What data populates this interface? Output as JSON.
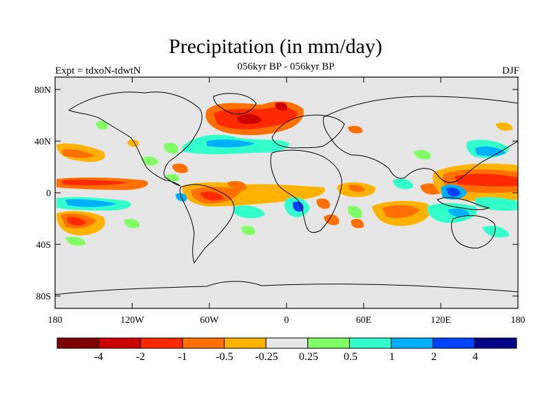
{
  "title": "Precipitation (in mm/day)",
  "subtitle": "056kyr BP - 056kyr BP",
  "left_subtitle": "Expt = tdxoN-tdwtN",
  "right_subtitle": "DJF",
  "colors": {
    "ocean": "#e6e6e6",
    "land_outline": "#000000",
    "bins": [
      "#7f0000",
      "#cc0000",
      "#ff2a00",
      "#ff7000",
      "#ffb300",
      "#e6e6e6",
      "#80ff66",
      "#33ffcc",
      "#00b0ff",
      "#0040ff",
      "#000088"
    ]
  },
  "y_ticks": [
    "80N",
    "40N",
    "0",
    "40S",
    "80S"
  ],
  "x_ticks": [
    "180",
    "120W",
    "60W",
    "0",
    "60E",
    "120E",
    "180"
  ],
  "colorbar_labels": [
    "-4",
    "-2",
    "-1",
    "-0.5",
    "-0.25",
    "0.25",
    "0.5",
    "1",
    "2",
    "4"
  ]
}
